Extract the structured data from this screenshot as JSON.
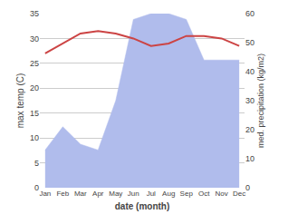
{
  "chart_data": {
    "type": "line",
    "xlabel": "date (month)",
    "ylabel": "max temp (C)",
    "y2label": "med. precipitation (kg/m2)",
    "categories": [
      "Jan",
      "Feb",
      "Mar",
      "Apr",
      "May",
      "Jun",
      "Jul",
      "Aug",
      "Sep",
      "Oct",
      "Nov",
      "Dec"
    ],
    "series": [
      {
        "type": "area",
        "axis": "y2",
        "color": "#b0bcec",
        "values": [
          13,
          21,
          15,
          13,
          30,
          58,
          60,
          60,
          58,
          44,
          44,
          44
        ]
      },
      {
        "type": "line",
        "color": "#cc4444",
        "values": [
          27,
          29,
          31,
          31.5,
          31,
          30,
          28.5,
          29,
          30.5,
          30.5,
          30,
          28.5
        ]
      }
    ],
    "ylim": [
      0,
      35
    ],
    "yticks": [
      0,
      5,
      10,
      15,
      20,
      25,
      30,
      35
    ],
    "y2lim": [
      0,
      60
    ],
    "y2ticks": [
      0,
      10,
      20,
      30,
      40,
      50,
      60
    ],
    "grid": true
  }
}
